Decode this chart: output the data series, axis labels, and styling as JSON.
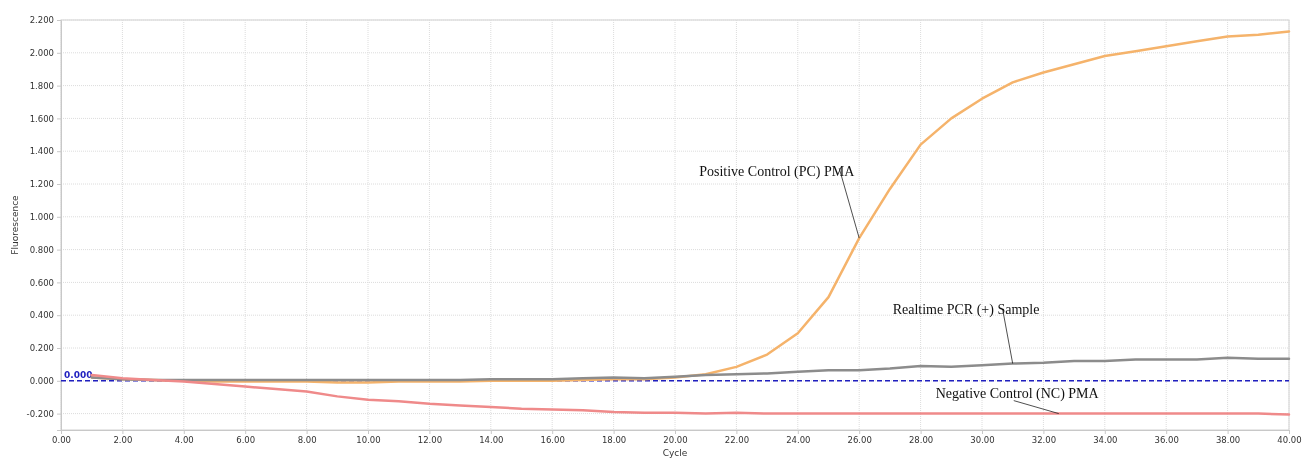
{
  "chart_data": {
    "type": "line",
    "xlabel": "Cycle",
    "ylabel": "Fluorescence",
    "x": [
      1,
      2,
      3,
      4,
      5,
      6,
      7,
      8,
      9,
      10,
      11,
      12,
      13,
      14,
      15,
      16,
      17,
      18,
      19,
      20,
      21,
      22,
      23,
      24,
      25,
      26,
      27,
      28,
      29,
      30,
      31,
      32,
      33,
      34,
      35,
      36,
      37,
      38,
      39,
      40
    ],
    "series": [
      {
        "name": null,
        "color": "#f5b36b",
        "values": [
          0.02,
          0.01,
          0.005,
          0.0,
          -0.005,
          -0.005,
          -0.005,
          -0.005,
          -0.01,
          -0.01,
          -0.005,
          -0.005,
          -0.005,
          0.0,
          0.0,
          0.0,
          0.005,
          0.01,
          0.01,
          0.02,
          0.04,
          0.085,
          0.16,
          0.29,
          0.51,
          0.87,
          1.17,
          1.44,
          1.6,
          1.72,
          1.82,
          1.88,
          1.93,
          1.98,
          2.01,
          2.04,
          2.07,
          2.1,
          2.11,
          2.13
        ]
      },
      {
        "name": null,
        "color": "#8c8c8c",
        "values": [
          0.02,
          0.01,
          0.005,
          0.005,
          0.005,
          0.005,
          0.005,
          0.005,
          0.005,
          0.005,
          0.005,
          0.005,
          0.005,
          0.01,
          0.01,
          0.01,
          0.015,
          0.02,
          0.015,
          0.025,
          0.035,
          0.04,
          0.045,
          0.055,
          0.065,
          0.065,
          0.075,
          0.09,
          0.085,
          0.095,
          0.105,
          0.11,
          0.12,
          0.12,
          0.13,
          0.13,
          0.13,
          0.14,
          0.135,
          0.135
        ]
      },
      {
        "name": null,
        "color": "#ef8a8a",
        "values": [
          0.035,
          0.015,
          0.005,
          -0.005,
          -0.02,
          -0.035,
          -0.05,
          -0.065,
          -0.095,
          -0.115,
          -0.125,
          -0.14,
          -0.15,
          -0.16,
          -0.17,
          -0.175,
          -0.18,
          -0.19,
          -0.195,
          -0.195,
          -0.2,
          -0.195,
          -0.2,
          -0.2,
          -0.2,
          -0.2,
          -0.2,
          -0.2,
          -0.2,
          -0.2,
          -0.2,
          -0.2,
          -0.2,
          -0.2,
          -0.2,
          -0.2,
          -0.2,
          -0.2,
          -0.2,
          -0.205
        ]
      }
    ],
    "xlim": [
      0,
      40
    ],
    "xticks": [
      {
        "value": 0,
        "label": "0.00"
      },
      {
        "value": 2,
        "label": "2.00"
      },
      {
        "value": 4,
        "label": "4.00"
      },
      {
        "value": 6,
        "label": "6.00"
      },
      {
        "value": 8,
        "label": "8.00"
      },
      {
        "value": 10,
        "label": "10.00"
      },
      {
        "value": 12,
        "label": "12.00"
      },
      {
        "value": 14,
        "label": "14.00"
      },
      {
        "value": 16,
        "label": "16.00"
      },
      {
        "value": 18,
        "label": "18.00"
      },
      {
        "value": 20,
        "label": "20.00"
      },
      {
        "value": 22,
        "label": "22.00"
      },
      {
        "value": 24,
        "label": "24.00"
      },
      {
        "value": 26,
        "label": "26.00"
      },
      {
        "value": 28,
        "label": "28.00"
      },
      {
        "value": 30,
        "label": "30.00"
      },
      {
        "value": 32,
        "label": "32.00"
      },
      {
        "value": 34,
        "label": "34.00"
      },
      {
        "value": 36,
        "label": "36.00"
      },
      {
        "value": 38,
        "label": "38.00"
      },
      {
        "value": 40,
        "label": "40.00"
      }
    ],
    "ylim": [
      -0.3,
      2.2
    ],
    "yticks": [
      {
        "value": -0.2,
        "label": "-0.200"
      },
      {
        "value": 0,
        "label": "0.000"
      },
      {
        "value": 0.2,
        "label": "0.200"
      },
      {
        "value": 0.4,
        "label": "0.400"
      },
      {
        "value": 0.6,
        "label": "0.600"
      },
      {
        "value": 0.8,
        "label": "0.800"
      },
      {
        "value": 1.0,
        "label": "1.000"
      },
      {
        "value": 1.2,
        "label": "1.200"
      },
      {
        "value": 1.4,
        "label": "1.400"
      },
      {
        "value": 1.6,
        "label": "1.600"
      },
      {
        "value": 1.8,
        "label": "1.800"
      },
      {
        "value": 2.0,
        "label": "2.000"
      },
      {
        "value": 2.2,
        "label": "2.200"
      }
    ],
    "ref_lines": [
      {
        "axis": "y",
        "value": 0,
        "label": "0.000",
        "color": "#1f1fbf",
        "line_style": "dashed"
      }
    ],
    "annotations": [
      {
        "text": "Positive Control (PC) PMA",
        "x": 26,
        "y": 0.87
      },
      {
        "text": "Realtime PCR (+) Sample",
        "x": 31,
        "y": 0.105
      },
      {
        "text": "Negative Control (NC) PMA",
        "x": 32.5,
        "y": -0.2
      }
    ],
    "grid": true,
    "marker": "none",
    "line_style": "solid"
  }
}
